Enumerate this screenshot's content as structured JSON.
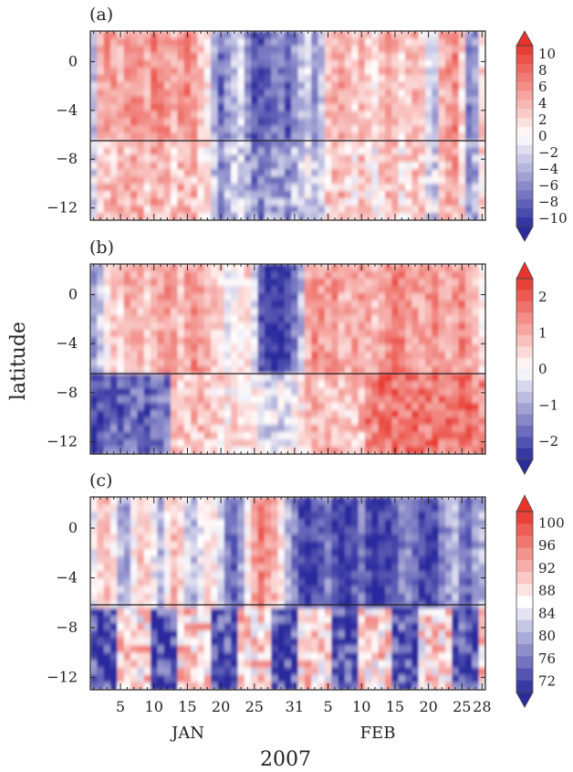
{
  "chart_data": [
    {
      "type": "heatmap",
      "panel": "(a)",
      "ylabel": "latitude",
      "yticks": [
        0,
        -4,
        -8,
        -12
      ],
      "ylim": [
        -13,
        2.5
      ],
      "xticks": [
        "5",
        "10",
        "15",
        "20",
        "25",
        "31",
        "5",
        "10",
        "15",
        "20",
        "25",
        "28"
      ],
      "months": [
        "JAN",
        "FEB"
      ],
      "xlabel": "2007",
      "xlim_days": [
        1,
        59
      ],
      "reference_latitude": -6.2,
      "colorbar": {
        "min": -10,
        "max": 10,
        "step": 1,
        "labels": [
          "10",
          "8",
          "6",
          "4",
          "2",
          "0",
          "−2",
          "−4",
          "−6",
          "−8",
          "−10"
        ],
        "colors": [
          "#2b2b9e",
          "#ffffff",
          "#e8342a"
        ]
      },
      "columns": [
        -3,
        4,
        5,
        5,
        4,
        5,
        6,
        5,
        4,
        6,
        6,
        5,
        4,
        5,
        6,
        5,
        3,
        1,
        -4,
        -7,
        -5,
        -3,
        -2,
        -6,
        -8,
        -8,
        -7,
        -6,
        -6,
        -8,
        -5,
        -3,
        -2,
        -5,
        -3,
        3,
        4,
        5,
        3,
        2,
        4,
        2,
        1,
        3,
        5,
        4,
        2,
        3,
        4,
        3,
        -2,
        -3,
        4,
        5,
        6,
        2,
        -6,
        -5,
        2
      ]
    },
    {
      "type": "heatmap",
      "panel": "(b)",
      "ylabel": "latitude",
      "yticks": [
        0,
        -4,
        -8,
        -12
      ],
      "ylim": [
        -13,
        2.5
      ],
      "xticks": [
        "5",
        "10",
        "15",
        "20",
        "25",
        "31",
        "5",
        "10",
        "15",
        "20",
        "25",
        "28"
      ],
      "xlabel": "2007",
      "reference_latitude": -6.2,
      "colorbar": {
        "min": -2,
        "max": 2,
        "step": 0.25,
        "labels": [
          "2",
          "1",
          "0",
          "−1",
          "−2"
        ],
        "colors": [
          "#2b2b9e",
          "#ffffff",
          "#e8342a"
        ]
      },
      "columns": [
        -1,
        -0.5,
        0.2,
        0.6,
        0.4,
        0.8,
        0.9,
        0.7,
        0.5,
        0.8,
        0.9,
        1,
        0.8,
        0.6,
        0.9,
        1.1,
        1,
        0.7,
        0.5,
        0.3,
        -0.2,
        0,
        0.2,
        0.4,
        -0.3,
        -1.6,
        -2,
        -2,
        -2,
        -1.7,
        -1.2,
        -0.6,
        0.8,
        1.2,
        1,
        0.9,
        1.1,
        0.8,
        0.7,
        0.9,
        1,
        0.8,
        0.6,
        0.9,
        1.1,
        1.3,
        1.2,
        1,
        0.9,
        0.8,
        1,
        1.1,
        0.9,
        0.8,
        1,
        1.2,
        0.9,
        0.6,
        0.2
      ]
    },
    {
      "type": "heatmap",
      "panel": "(c)",
      "ylabel": "latitude",
      "yticks": [
        0,
        -4,
        -8,
        -12
      ],
      "ylim": [
        -13,
        2.5
      ],
      "xticks": [
        "5",
        "10",
        "15",
        "20",
        "25",
        "31",
        "5",
        "10",
        "15",
        "20",
        "25",
        "28"
      ],
      "xlabel": "2007",
      "reference_latitude": -6.2,
      "colorbar": {
        "min": 70,
        "max": 100,
        "step": 2,
        "labels": [
          "100",
          "96",
          "92",
          "88",
          "84",
          "80",
          "76",
          "72"
        ],
        "colors": [
          "#2b2b9e",
          "#ffffff",
          "#e8342a"
        ]
      },
      "columns": [
        84,
        88,
        90,
        86,
        80,
        78,
        86,
        90,
        88,
        84,
        80,
        86,
        90,
        88,
        82,
        80,
        84,
        88,
        86,
        82,
        76,
        74,
        78,
        86,
        92,
        94,
        92,
        90,
        86,
        80,
        76,
        72,
        71,
        72,
        74,
        76,
        72,
        70,
        71,
        74,
        76,
        72,
        70,
        71,
        72,
        74,
        76,
        78,
        74,
        72,
        71,
        73,
        76,
        78,
        80,
        76,
        74,
        78,
        80
      ]
    }
  ],
  "labels": {
    "panel_a": "(a)",
    "panel_b": "(b)",
    "panel_c": "(c)",
    "ylabel": "latitude",
    "xlabel": "2007",
    "month_jan": "JAN",
    "month_feb": "FEB"
  }
}
